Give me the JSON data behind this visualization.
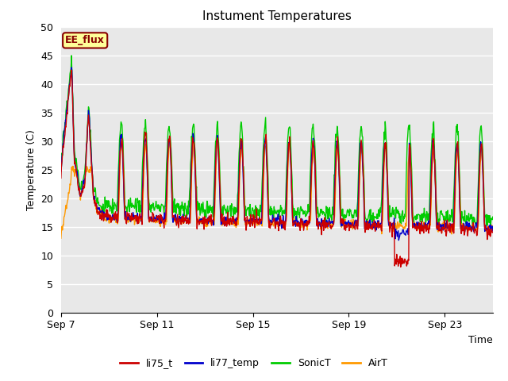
{
  "title": "Instument Temperatures",
  "ylabel": "Temperature (C)",
  "xlabel": "Time",
  "ylim": [
    0,
    50
  ],
  "yticks": [
    0,
    5,
    10,
    15,
    20,
    25,
    30,
    35,
    40,
    45,
    50
  ],
  "xtick_labels": [
    "Sep 7",
    "Sep 11",
    "Sep 15",
    "Sep 19",
    "Sep 23"
  ],
  "xtick_positions": [
    0,
    4,
    8,
    12,
    16
  ],
  "n_days": 18,
  "bg_color": "#e8e8e8",
  "fig_color": "#ffffff",
  "line_colors": {
    "li75_t": "#cc0000",
    "li77_temp": "#0000cc",
    "SonicT": "#00cc00",
    "AirT": "#ff9900"
  },
  "ee_flux_label": "EE_flux",
  "ee_flux_bg": "#ffff99",
  "ee_flux_border": "#880000"
}
